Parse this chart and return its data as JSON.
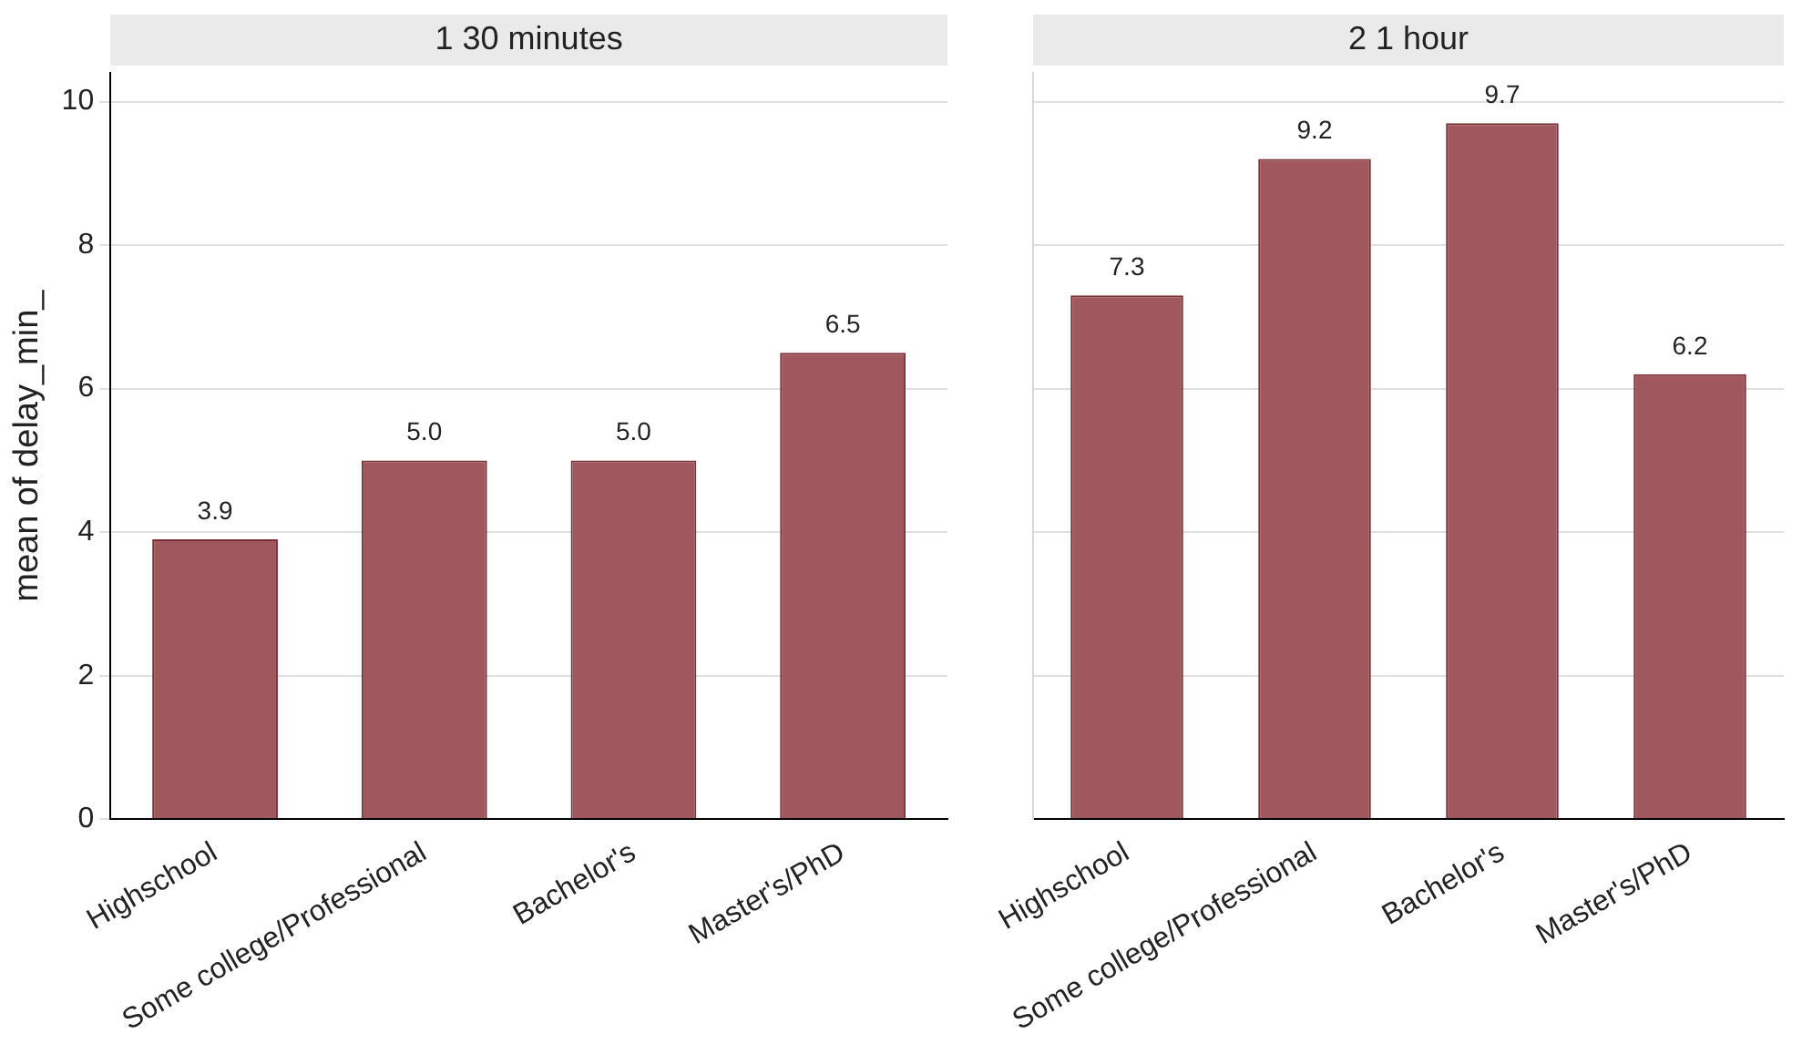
{
  "chart_data": [
    {
      "type": "bar",
      "title": "1 30 minutes",
      "ylabel": "mean of delay_min_",
      "categories": [
        "Highschool",
        "Some college/Professional",
        "Bachelor's",
        "Master's/PhD"
      ],
      "values": [
        3.9,
        5.0,
        5.0,
        6.5
      ],
      "value_labels": [
        "3.9",
        "5.0",
        "5.0",
        "6.5"
      ],
      "color": "#a0585e",
      "ylim": [
        0,
        10.4
      ],
      "yticks": [
        0,
        2,
        4,
        6,
        8,
        10
      ],
      "grid": "y",
      "legend": false
    },
    {
      "type": "bar",
      "title": "2 1 hour",
      "categories": [
        "Highschool",
        "Some college/Professional",
        "Bachelor's",
        "Master's/PhD"
      ],
      "values": [
        7.3,
        9.2,
        9.7,
        6.2
      ],
      "value_labels": [
        "7.3",
        "9.2",
        "9.7",
        "6.2"
      ],
      "color": "#a0585e",
      "ylim": [
        0,
        10.4
      ],
      "yticks": [
        0,
        2,
        4,
        6,
        8,
        10
      ],
      "grid": "y",
      "legend": false,
      "tick_labels": "x"
    }
  ]
}
